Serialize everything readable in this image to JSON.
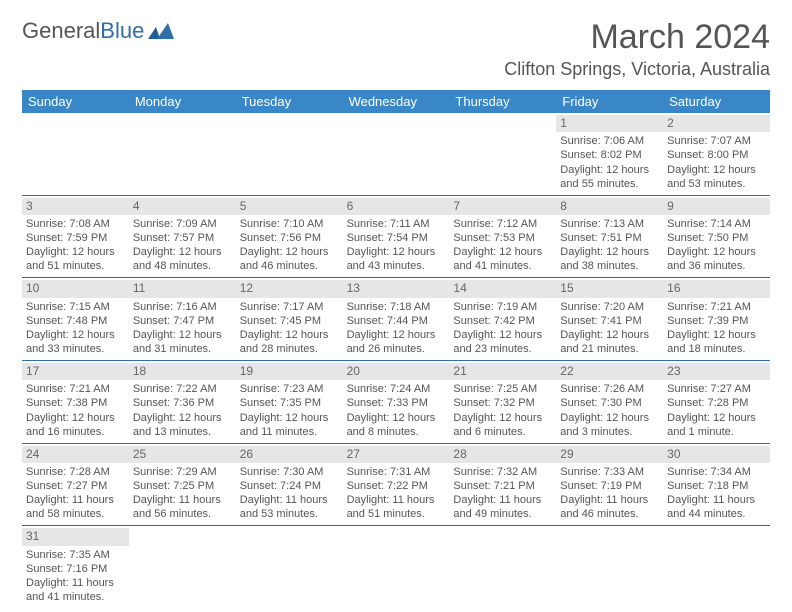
{
  "logo": {
    "text1": "General",
    "text2": "Blue"
  },
  "title": "March 2024",
  "location": "Clifton Springs, Victoria, Australia",
  "colors": {
    "header_bg": "#3a87c8",
    "daynum_bg": "#e6e6e6",
    "rule": "#2f6ea8"
  },
  "weekdays": [
    "Sunday",
    "Monday",
    "Tuesday",
    "Wednesday",
    "Thursday",
    "Friday",
    "Saturday"
  ],
  "weeks": [
    [
      {
        "blank": true
      },
      {
        "blank": true
      },
      {
        "blank": true
      },
      {
        "blank": true
      },
      {
        "blank": true
      },
      {
        "n": "1",
        "sr": "7:06 AM",
        "ss": "8:02 PM",
        "dl": "12 hours and 55 minutes."
      },
      {
        "n": "2",
        "sr": "7:07 AM",
        "ss": "8:00 PM",
        "dl": "12 hours and 53 minutes."
      }
    ],
    [
      {
        "n": "3",
        "sr": "7:08 AM",
        "ss": "7:59 PM",
        "dl": "12 hours and 51 minutes."
      },
      {
        "n": "4",
        "sr": "7:09 AM",
        "ss": "7:57 PM",
        "dl": "12 hours and 48 minutes."
      },
      {
        "n": "5",
        "sr": "7:10 AM",
        "ss": "7:56 PM",
        "dl": "12 hours and 46 minutes."
      },
      {
        "n": "6",
        "sr": "7:11 AM",
        "ss": "7:54 PM",
        "dl": "12 hours and 43 minutes."
      },
      {
        "n": "7",
        "sr": "7:12 AM",
        "ss": "7:53 PM",
        "dl": "12 hours and 41 minutes."
      },
      {
        "n": "8",
        "sr": "7:13 AM",
        "ss": "7:51 PM",
        "dl": "12 hours and 38 minutes."
      },
      {
        "n": "9",
        "sr": "7:14 AM",
        "ss": "7:50 PM",
        "dl": "12 hours and 36 minutes."
      }
    ],
    [
      {
        "n": "10",
        "sr": "7:15 AM",
        "ss": "7:48 PM",
        "dl": "12 hours and 33 minutes."
      },
      {
        "n": "11",
        "sr": "7:16 AM",
        "ss": "7:47 PM",
        "dl": "12 hours and 31 minutes."
      },
      {
        "n": "12",
        "sr": "7:17 AM",
        "ss": "7:45 PM",
        "dl": "12 hours and 28 minutes."
      },
      {
        "n": "13",
        "sr": "7:18 AM",
        "ss": "7:44 PM",
        "dl": "12 hours and 26 minutes."
      },
      {
        "n": "14",
        "sr": "7:19 AM",
        "ss": "7:42 PM",
        "dl": "12 hours and 23 minutes."
      },
      {
        "n": "15",
        "sr": "7:20 AM",
        "ss": "7:41 PM",
        "dl": "12 hours and 21 minutes."
      },
      {
        "n": "16",
        "sr": "7:21 AM",
        "ss": "7:39 PM",
        "dl": "12 hours and 18 minutes."
      }
    ],
    [
      {
        "n": "17",
        "sr": "7:21 AM",
        "ss": "7:38 PM",
        "dl": "12 hours and 16 minutes."
      },
      {
        "n": "18",
        "sr": "7:22 AM",
        "ss": "7:36 PM",
        "dl": "12 hours and 13 minutes."
      },
      {
        "n": "19",
        "sr": "7:23 AM",
        "ss": "7:35 PM",
        "dl": "12 hours and 11 minutes."
      },
      {
        "n": "20",
        "sr": "7:24 AM",
        "ss": "7:33 PM",
        "dl": "12 hours and 8 minutes."
      },
      {
        "n": "21",
        "sr": "7:25 AM",
        "ss": "7:32 PM",
        "dl": "12 hours and 6 minutes."
      },
      {
        "n": "22",
        "sr": "7:26 AM",
        "ss": "7:30 PM",
        "dl": "12 hours and 3 minutes."
      },
      {
        "n": "23",
        "sr": "7:27 AM",
        "ss": "7:28 PM",
        "dl": "12 hours and 1 minute."
      }
    ],
    [
      {
        "n": "24",
        "sr": "7:28 AM",
        "ss": "7:27 PM",
        "dl": "11 hours and 58 minutes."
      },
      {
        "n": "25",
        "sr": "7:29 AM",
        "ss": "7:25 PM",
        "dl": "11 hours and 56 minutes."
      },
      {
        "n": "26",
        "sr": "7:30 AM",
        "ss": "7:24 PM",
        "dl": "11 hours and 53 minutes."
      },
      {
        "n": "27",
        "sr": "7:31 AM",
        "ss": "7:22 PM",
        "dl": "11 hours and 51 minutes."
      },
      {
        "n": "28",
        "sr": "7:32 AM",
        "ss": "7:21 PM",
        "dl": "11 hours and 49 minutes."
      },
      {
        "n": "29",
        "sr": "7:33 AM",
        "ss": "7:19 PM",
        "dl": "11 hours and 46 minutes."
      },
      {
        "n": "30",
        "sr": "7:34 AM",
        "ss": "7:18 PM",
        "dl": "11 hours and 44 minutes."
      }
    ],
    [
      {
        "n": "31",
        "sr": "7:35 AM",
        "ss": "7:16 PM",
        "dl": "11 hours and 41 minutes."
      },
      {
        "blank": true
      },
      {
        "blank": true
      },
      {
        "blank": true
      },
      {
        "blank": true
      },
      {
        "blank": true
      },
      {
        "blank": true
      }
    ]
  ],
  "labels": {
    "sunrise": "Sunrise:",
    "sunset": "Sunset:",
    "daylight": "Daylight:"
  }
}
